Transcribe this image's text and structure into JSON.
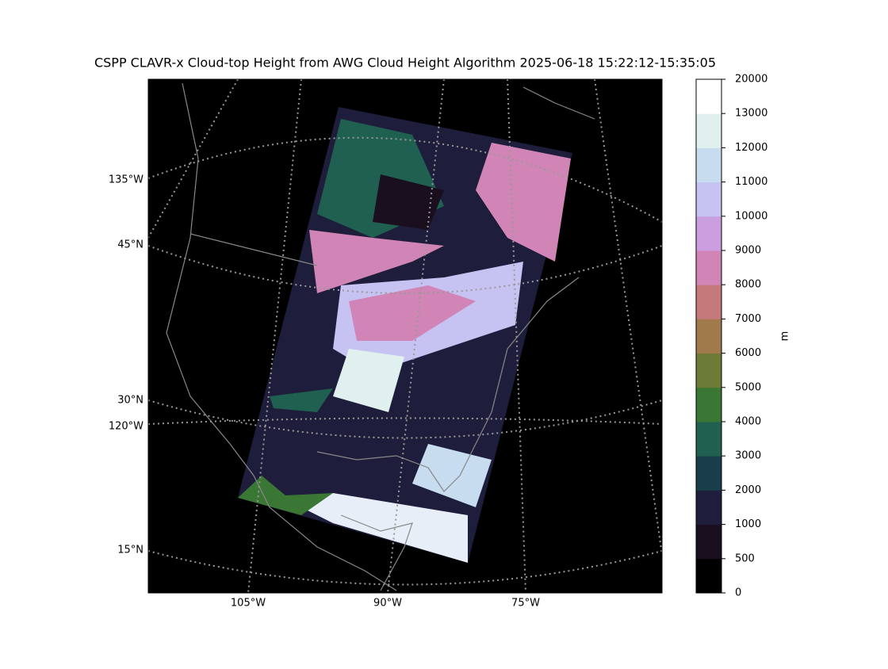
{
  "title": "CSPP CLAVR-x Cloud-top Height from AWG Cloud Height Algorithm 2025-06-18 15:22:12-15:35:05",
  "map": {
    "lat_labels": [
      "45°N",
      "30°N",
      "15°N"
    ],
    "lon_labels_left": [
      "135°W",
      "120°W"
    ],
    "lon_labels_bottom": [
      "105°W",
      "90°W",
      "75°W"
    ]
  },
  "colorbar": {
    "label": "m",
    "ticks": [
      0,
      500,
      1000,
      2000,
      3000,
      4000,
      5000,
      6000,
      7000,
      8000,
      9000,
      10000,
      11000,
      12000,
      13000,
      20000
    ],
    "colors": [
      "#000000",
      "#1a0f1f",
      "#1e1e3c",
      "#1a3d4b",
      "#1f6050",
      "#3a7634",
      "#6c7b35",
      "#a07a4a",
      "#c47a7a",
      "#d184b6",
      "#cb9ee0",
      "#c6c2f2",
      "#c8dcf0",
      "#dff0ee",
      "#ffffff"
    ]
  }
}
